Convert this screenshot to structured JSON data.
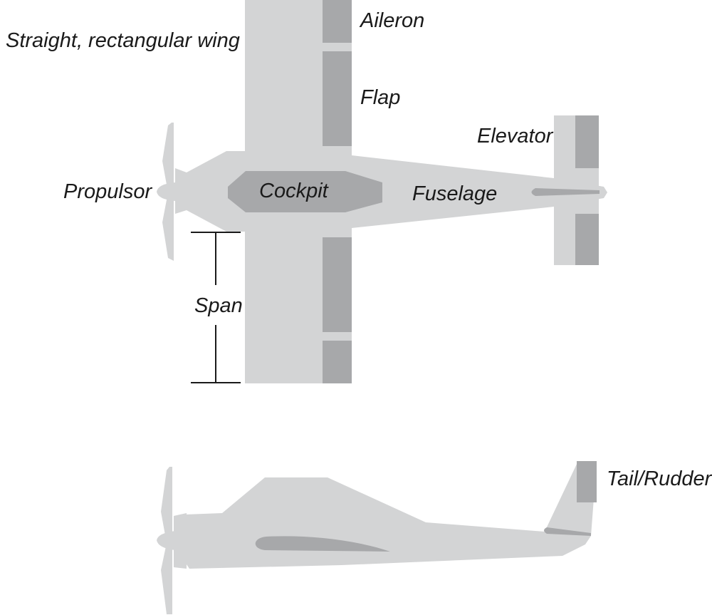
{
  "labels": {
    "wing": "Straight, rectangular wing",
    "aileron": "Aileron",
    "flap": "Flap",
    "elevator": "Elevator",
    "propulsor": "Propulsor",
    "cockpit": "Cockpit",
    "fuselage": "Fuselage",
    "span": "Span",
    "tail_rudder": "Tail/Rudder"
  },
  "colors": {
    "body": "#d3d4d5",
    "control_surface": "#a7a8aa",
    "cockpit": "#a7a8aa",
    "line": "#1a1a1a",
    "text": "#1a1a1a"
  }
}
